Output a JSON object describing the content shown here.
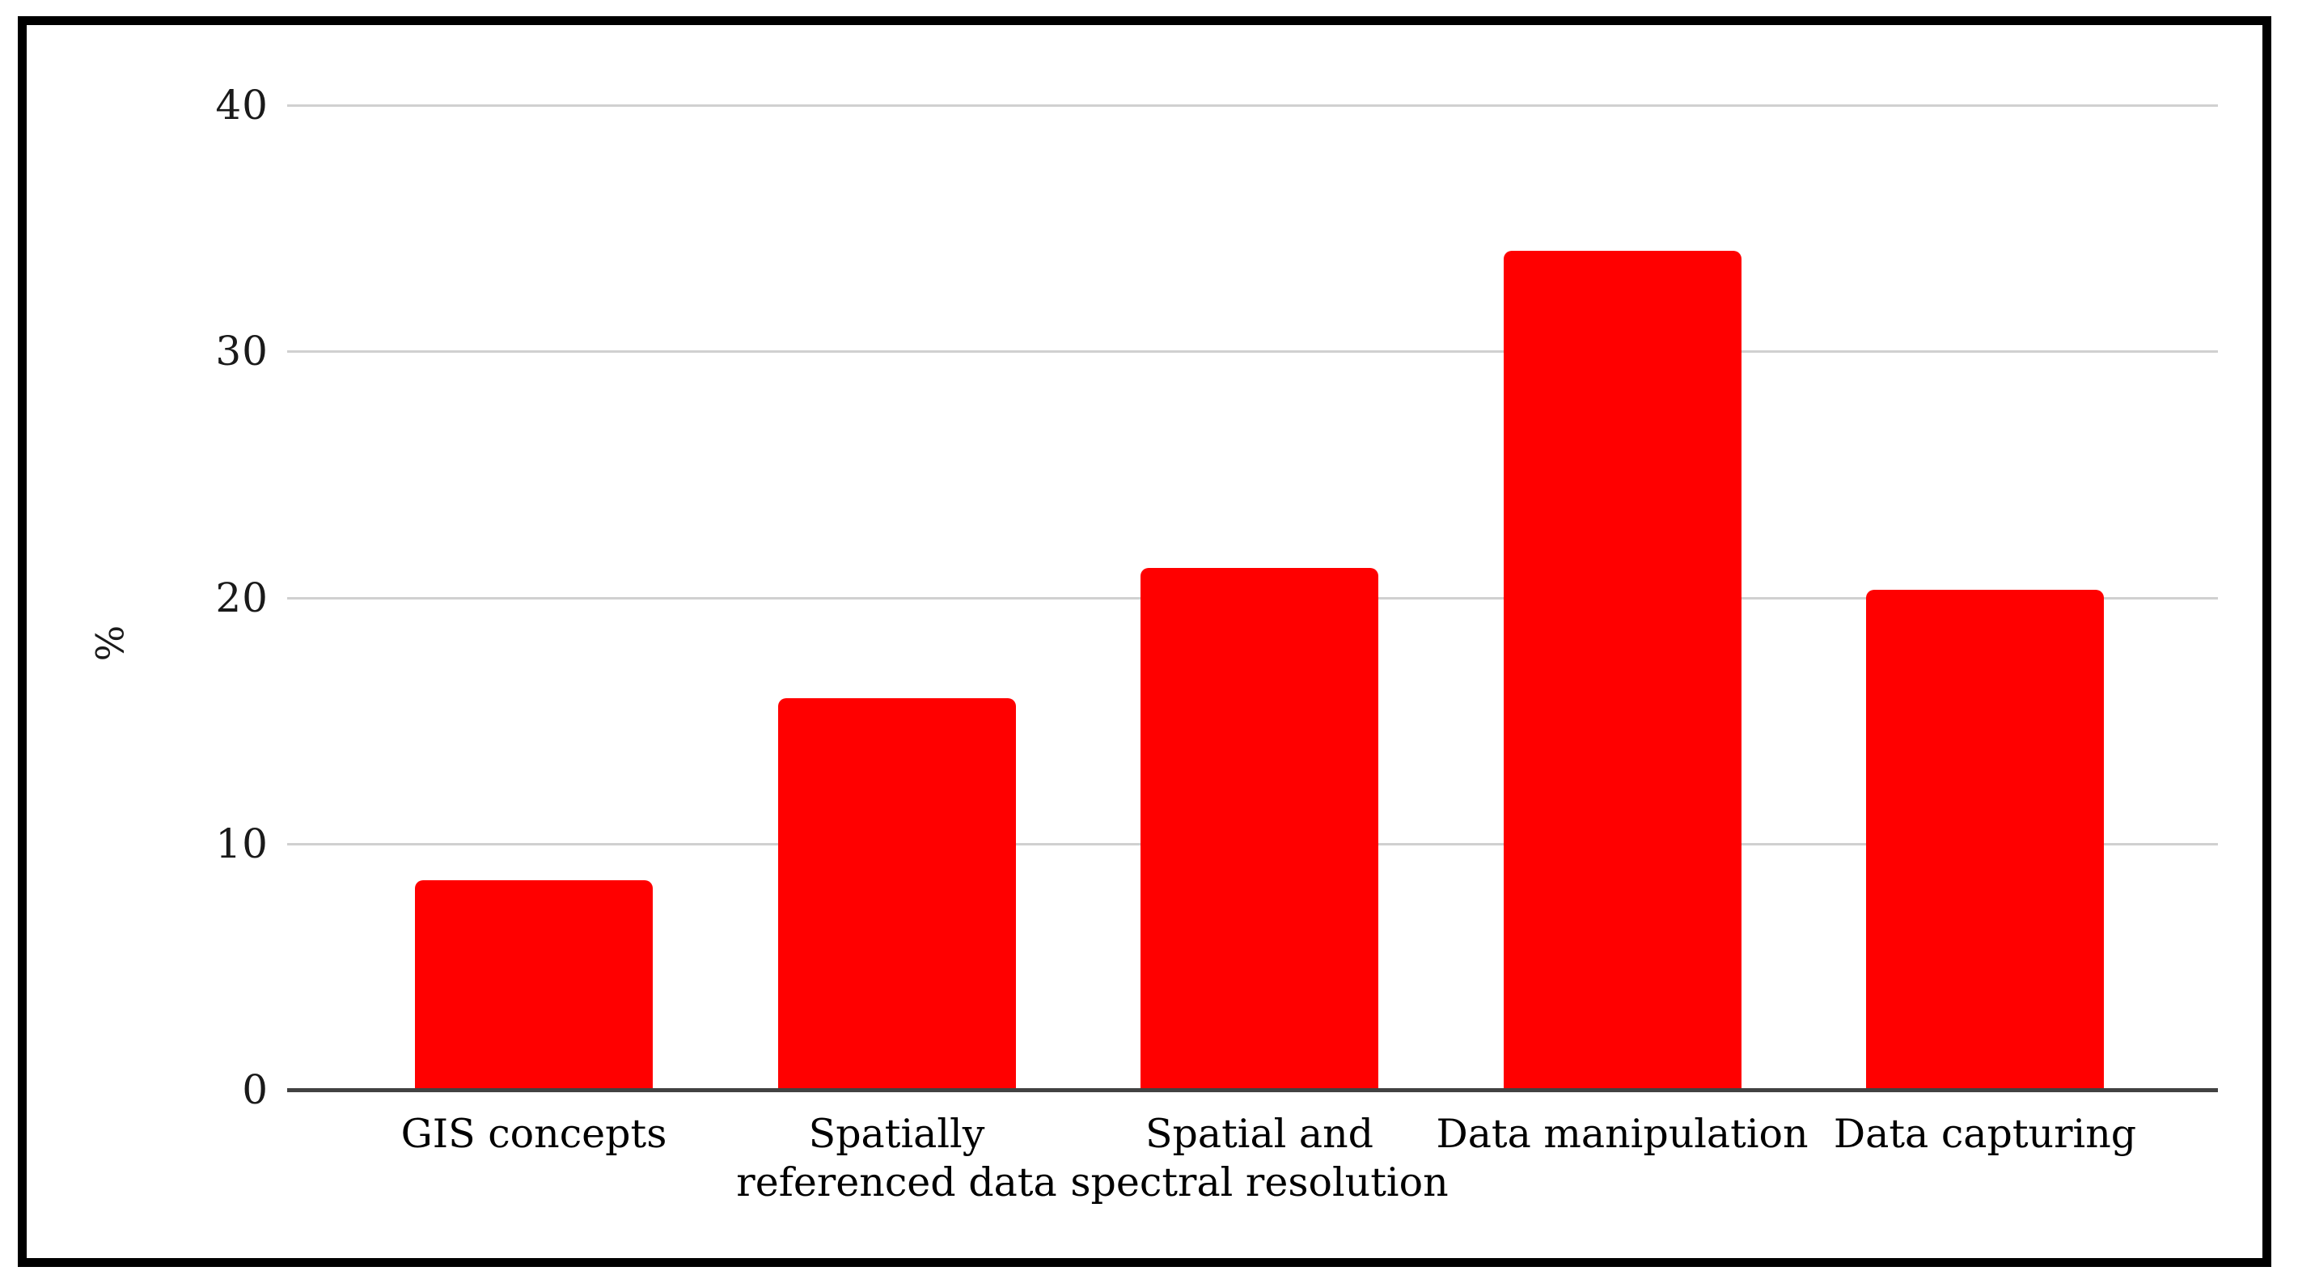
{
  "figure": {
    "background_color": "#ffffff",
    "frame_border_color": "#000000"
  },
  "chart_data": {
    "type": "bar",
    "title": "",
    "categories": [
      "GIS concepts",
      "Spatially referenced data",
      "Spatial and spectral resolution",
      "Data manipulation",
      "Data capturing"
    ],
    "categories_wrapped": [
      "GIS concepts",
      "Spatially\nreferenced data",
      "Spatial and\nspectral resolution",
      "Data manipulation",
      "Data capturing"
    ],
    "values": [
      8.5,
      15.9,
      21.2,
      34.1,
      20.3
    ],
    "xlabel": "",
    "ylabel": "%",
    "ylim": [
      0,
      40
    ],
    "yticks": [
      0,
      10,
      20,
      30,
      40
    ],
    "grid": true,
    "legend": false,
    "bar_color": "#ff0000",
    "gridline_color": "#d0d0d0",
    "axis_line_color": "#424242",
    "tick_text_color": "#1a1a1a"
  }
}
